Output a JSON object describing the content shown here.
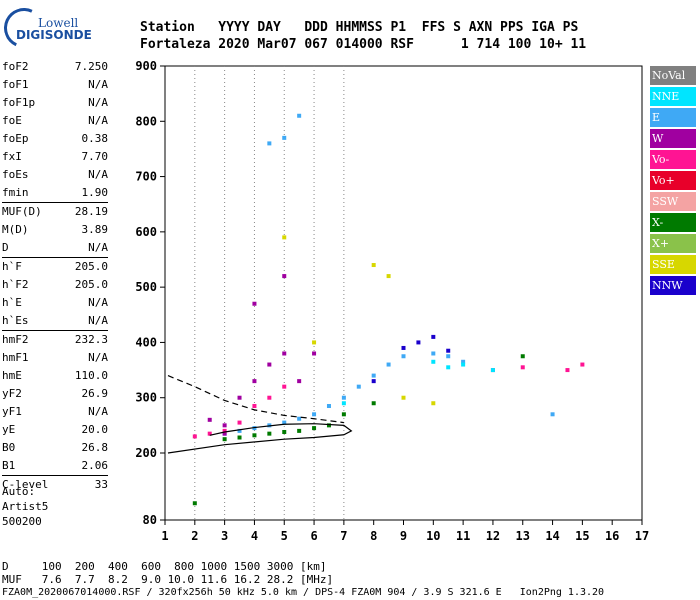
{
  "logo": {
    "line1": "Lowell",
    "line2": "DIGISONDE"
  },
  "header": {
    "row1": "Station   YYYY DAY   DDD HHMMSS P1  FFS S AXN PPS IGA PS",
    "row2": "Fortaleza 2020 Mar07 067 014000 RSF      1 714 100 10+ 11"
  },
  "params": [
    {
      "group": [
        [
          "foF2",
          "7.250"
        ],
        [
          "foF1",
          "N/A"
        ],
        [
          "foF1p",
          "N/A"
        ],
        [
          "foE",
          "N/A"
        ],
        [
          "foEp",
          "0.38"
        ],
        [
          "fxI",
          "7.70"
        ],
        [
          "foEs",
          "N/A"
        ],
        [
          "fmin",
          "1.90"
        ]
      ]
    },
    {
      "group": [
        [
          "MUF(D)",
          "28.19"
        ],
        [
          "M(D)",
          "3.89"
        ],
        [
          "D",
          "N/A"
        ]
      ]
    },
    {
      "group": [
        [
          "h`F",
          "205.0"
        ],
        [
          "h`F2",
          "205.0"
        ],
        [
          "h`E",
          "N/A"
        ],
        [
          "h`Es",
          "N/A"
        ]
      ]
    },
    {
      "group": [
        [
          "hmF2",
          "232.3"
        ],
        [
          "hmF1",
          "N/A"
        ],
        [
          "hmE",
          "110.0"
        ],
        [
          "yF2",
          "26.9"
        ],
        [
          "yF1",
          "N/A"
        ],
        [
          "yE",
          "20.0"
        ],
        [
          "B0",
          "26.8"
        ],
        [
          "B1",
          "2.06"
        ]
      ]
    },
    {
      "group": [
        [
          "C-level",
          "33"
        ]
      ]
    }
  ],
  "autoscale": {
    "line1": "Auto:",
    "line2": "Artist5",
    "line3": "500200"
  },
  "legend": [
    {
      "label": "NoVal",
      "color": "#808080"
    },
    {
      "label": "NNE",
      "color": "#00e5ff"
    },
    {
      "label": "E",
      "color": "#3fa9f5"
    },
    {
      "label": "W",
      "color": "#a000a0"
    },
    {
      "label": "Vo-",
      "color": "#ff1493"
    },
    {
      "label": "Vo+",
      "color": "#e8002a"
    },
    {
      "label": "SSW",
      "color": "#f4a3a3"
    },
    {
      "label": "X-",
      "color": "#007a00"
    },
    {
      "label": "X+",
      "color": "#8ac24a"
    },
    {
      "label": "SSE",
      "color": "#d7d700"
    },
    {
      "label": "NNW",
      "color": "#1a00cc"
    }
  ],
  "chart_data": {
    "type": "scatter",
    "xlabel": "",
    "ylabel": "",
    "xlim": [
      1,
      17
    ],
    "ylim": [
      80,
      900
    ],
    "xticks": [
      1,
      2,
      3,
      4,
      5,
      6,
      7,
      8,
      9,
      10,
      11,
      12,
      13,
      14,
      15,
      16,
      17
    ],
    "yticks": [
      80,
      200,
      300,
      400,
      500,
      600,
      700,
      800,
      900
    ],
    "grid": "dotted at x=2..7",
    "series": [
      {
        "name": "E",
        "color": "#3fa9f5",
        "points": [
          [
            3,
            235
          ],
          [
            3.5,
            240
          ],
          [
            4,
            245
          ],
          [
            4.5,
            250
          ],
          [
            5,
            255
          ],
          [
            5.5,
            262
          ],
          [
            6,
            270
          ],
          [
            6.5,
            285
          ],
          [
            7,
            300
          ],
          [
            7.5,
            320
          ],
          [
            8,
            340
          ],
          [
            8.5,
            360
          ],
          [
            9,
            375
          ],
          [
            10,
            380
          ],
          [
            10.5,
            375
          ],
          [
            11,
            365
          ],
          [
            5,
            770
          ],
          [
            5.5,
            810
          ],
          [
            4.5,
            760
          ],
          [
            14,
            270
          ]
        ]
      },
      {
        "name": "W",
        "color": "#a000a0",
        "points": [
          [
            3,
            235
          ],
          [
            3.5,
            300
          ],
          [
            4,
            330
          ],
          [
            4.5,
            360
          ],
          [
            5,
            380
          ],
          [
            5.5,
            330
          ],
          [
            4,
            470
          ],
          [
            5,
            520
          ],
          [
            6,
            380
          ],
          [
            2.5,
            260
          ],
          [
            3,
            250
          ]
        ]
      },
      {
        "name": "Vo-",
        "color": "#ff1493",
        "points": [
          [
            2,
            230
          ],
          [
            2.5,
            235
          ],
          [
            3,
            240
          ],
          [
            3.5,
            255
          ],
          [
            4,
            285
          ],
          [
            4.5,
            300
          ],
          [
            5,
            320
          ],
          [
            15,
            360
          ],
          [
            14.5,
            350
          ],
          [
            13,
            355
          ],
          [
            12,
            350
          ]
        ]
      },
      {
        "name": "X-",
        "color": "#007a00",
        "points": [
          [
            3,
            225
          ],
          [
            3.5,
            228
          ],
          [
            4,
            232
          ],
          [
            4.5,
            235
          ],
          [
            5,
            238
          ],
          [
            5.5,
            240
          ],
          [
            6,
            245
          ],
          [
            6.5,
            250
          ],
          [
            7,
            270
          ],
          [
            8,
            290
          ],
          [
            13,
            375
          ],
          [
            2,
            110
          ]
        ]
      },
      {
        "name": "NNW",
        "color": "#1a00cc",
        "points": [
          [
            9.5,
            400
          ],
          [
            10,
            410
          ],
          [
            10.5,
            385
          ],
          [
            8,
            330
          ],
          [
            9,
            390
          ]
        ]
      },
      {
        "name": "SSE",
        "color": "#d7d700",
        "points": [
          [
            8,
            540
          ],
          [
            8.5,
            520
          ],
          [
            6,
            400
          ],
          [
            9,
            300
          ],
          [
            10,
            290
          ],
          [
            5,
            590
          ]
        ]
      },
      {
        "name": "NNE",
        "color": "#00e5ff",
        "points": [
          [
            10,
            365
          ],
          [
            10.5,
            355
          ],
          [
            11,
            360
          ],
          [
            12,
            350
          ],
          [
            7,
            290
          ]
        ]
      }
    ],
    "profile_curve": [
      [
        1.1,
        200
      ],
      [
        3,
        215
      ],
      [
        5,
        225
      ],
      [
        6,
        228
      ],
      [
        7,
        233
      ],
      [
        7.25,
        240
      ],
      [
        7,
        250
      ],
      [
        6,
        253
      ],
      [
        5,
        252
      ],
      [
        4,
        246
      ],
      [
        3,
        238
      ],
      [
        2.5,
        232
      ]
    ],
    "dashed_curve": [
      [
        1.1,
        340
      ],
      [
        2,
        320
      ],
      [
        3,
        295
      ],
      [
        4,
        278
      ],
      [
        5,
        268
      ],
      [
        6,
        262
      ],
      [
        7,
        255
      ]
    ]
  },
  "footer": {
    "row1": "D     100  200  400  600  800 1000 1500 3000 [km]",
    "row2": "MUF   7.6  7.7  8.2  9.0 10.0 11.6 16.2 28.2 [MHz]",
    "row3": "FZA0M_2020067014000.RSF / 320fx256h 50 kHz 5.0 km / DPS-4 FZA0M 904 / 3.9 S 321.6 E   Ion2Png 1.3.20"
  }
}
